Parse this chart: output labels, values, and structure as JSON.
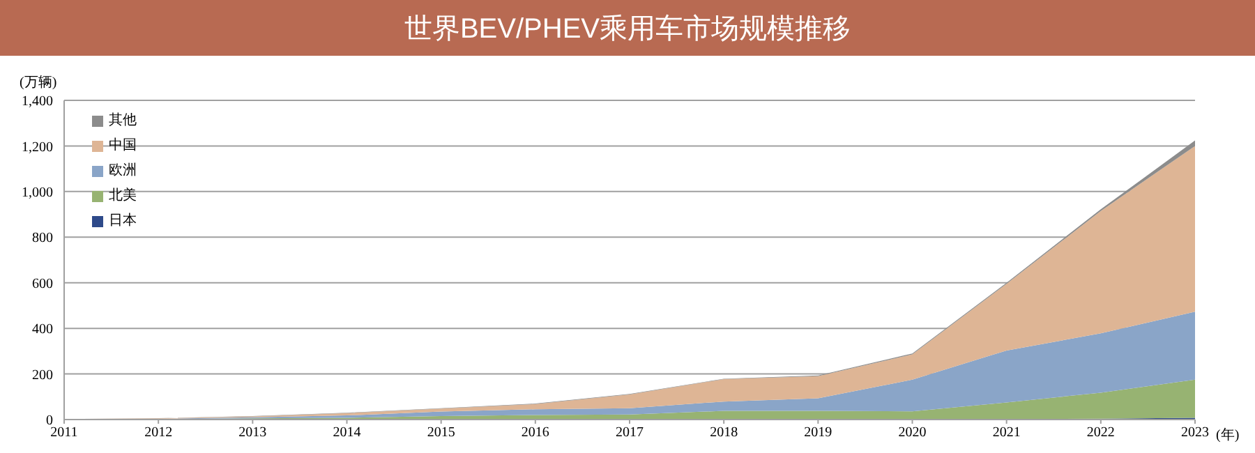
{
  "chart_data": {
    "type": "area",
    "title": "世界BEV/PHEV乘用车市场规模推移",
    "ylabel": "(万辆)",
    "xlabel": "(年)",
    "x": [
      2011,
      2012,
      2013,
      2014,
      2015,
      2016,
      2017,
      2018,
      2019,
      2020,
      2021,
      2022,
      2023
    ],
    "stacked": true,
    "series": [
      {
        "name": "日本",
        "color": "#2e4a8a",
        "values": [
          0,
          0,
          1,
          1,
          1,
          1,
          1,
          1,
          1,
          1,
          2,
          4,
          8
        ]
      },
      {
        "name": "北美",
        "color": "#97b372",
        "values": [
          1,
          2,
          4,
          7,
          14,
          19,
          21,
          37,
          37,
          35,
          73,
          114,
          167
        ]
      },
      {
        "name": "欧洲",
        "color": "#8aa5c8",
        "values": [
          1,
          1,
          5,
          10,
          20,
          25,
          28,
          41,
          55,
          139,
          228,
          260,
          298
        ]
      },
      {
        "name": "中国",
        "color": "#deb595",
        "values": [
          0,
          2,
          4,
          10,
          13,
          23,
          60,
          98,
          97,
          111,
          292,
          537,
          727
        ]
      },
      {
        "name": "其他",
        "color": "#8c8c8c",
        "values": [
          0,
          1,
          1,
          2,
          2,
          2,
          2,
          2,
          3,
          4,
          5,
          7,
          24
        ]
      }
    ],
    "xlim": [
      2011,
      2023
    ],
    "xticks": [
      2011,
      2012,
      2013,
      2014,
      2015,
      2016,
      2017,
      2018,
      2019,
      2020,
      2021,
      2022,
      2023
    ],
    "ylim": [
      0,
      1400
    ],
    "yticks": [
      0,
      {
        "value": 200,
        "label": "200"
      },
      {
        "value": 400,
        "label": "400"
      },
      {
        "value": 600,
        "label": "600"
      },
      {
        "value": 800,
        "label": "800"
      },
      {
        "value": 1000,
        "label": "1,000"
      },
      {
        "value": 1200,
        "label": "1,200"
      },
      {
        "value": 1400,
        "label": "1,400"
      }
    ],
    "grid": "y",
    "legend": "top left"
  }
}
